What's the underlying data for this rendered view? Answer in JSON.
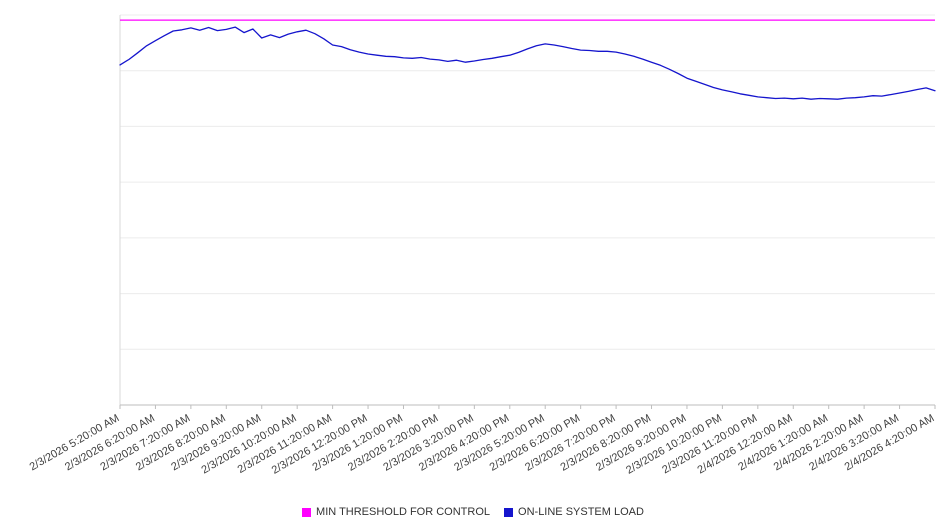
{
  "chart_data": {
    "type": "line",
    "title": "",
    "xlabel": "",
    "ylabel": "",
    "ylim": [
      0,
      100
    ],
    "grid": true,
    "legend_position": "bottom",
    "categories": [
      "2/3/2026 5:20:00 AM",
      "2/3/2026 6:20:00 AM",
      "2/3/2026 7:20:00 AM",
      "2/3/2026 8:20:00 AM",
      "2/3/2026 9:20:00 AM",
      "2/3/2026 10:20:00 AM",
      "2/3/2026 11:20:00 AM",
      "2/3/2026 12:20:00 PM",
      "2/3/2026 1:20:00 PM",
      "2/3/2026 2:20:00 PM",
      "2/3/2026 3:20:00 PM",
      "2/3/2026 4:20:00 PM",
      "2/3/2026 5:20:00 PM",
      "2/3/2026 6:20:00 PM",
      "2/3/2026 7:20:00 PM",
      "2/3/2026 8:20:00 PM",
      "2/3/2026 9:20:00 PM",
      "2/3/2026 10:20:00 PM",
      "2/3/2026 11:20:00 PM",
      "2/4/2026 12:20:00 AM",
      "2/4/2026 1:20:00 AM",
      "2/4/2026 2:20:00 AM",
      "2/4/2026 3:20:00 AM",
      "2/4/2026 4:20:00 AM"
    ],
    "series": [
      {
        "name": "MIN THRESHOLD FOR CONTROL",
        "kind": "threshold",
        "color": "#ff00ff",
        "value": 98.7
      },
      {
        "name": "ON-LINE SYSTEM LOAD",
        "kind": "line",
        "color": "#1515cd",
        "values": [
          87.2,
          88.6,
          90.3,
          92.1,
          93.4,
          94.7,
          95.9,
          96.2,
          96.7,
          96.1,
          96.8,
          96.0,
          96.3,
          96.9,
          95.5,
          96.4,
          94.1,
          94.9,
          94.2,
          95.1,
          95.7,
          96.1,
          95.2,
          93.9,
          92.3,
          91.9,
          91.1,
          90.5,
          90.0,
          89.7,
          89.4,
          89.3,
          89.0,
          88.9,
          89.1,
          88.7,
          88.5,
          88.1,
          88.4,
          87.9,
          88.2,
          88.6,
          88.9,
          89.3,
          89.7,
          90.4,
          91.3,
          92.1,
          92.6,
          92.3,
          91.9,
          91.4,
          91.0,
          90.9,
          90.7,
          90.7,
          90.5,
          90.0,
          89.4,
          88.7,
          87.9,
          87.1,
          86.1,
          85.0,
          83.8,
          83.0,
          82.2,
          81.4,
          80.8,
          80.3,
          79.8,
          79.4,
          79.0,
          78.8,
          78.6,
          78.7,
          78.5,
          78.7,
          78.4,
          78.6,
          78.5,
          78.4,
          78.7,
          78.8,
          79.0,
          79.3,
          79.2,
          79.6,
          80.0,
          80.4,
          80.9,
          81.3,
          80.6
        ]
      }
    ],
    "colors": {
      "gridline": "#ececec",
      "x_axis": "#bdbdbd",
      "y_axis": "#d9d9d9",
      "label_text": "#404040"
    }
  }
}
